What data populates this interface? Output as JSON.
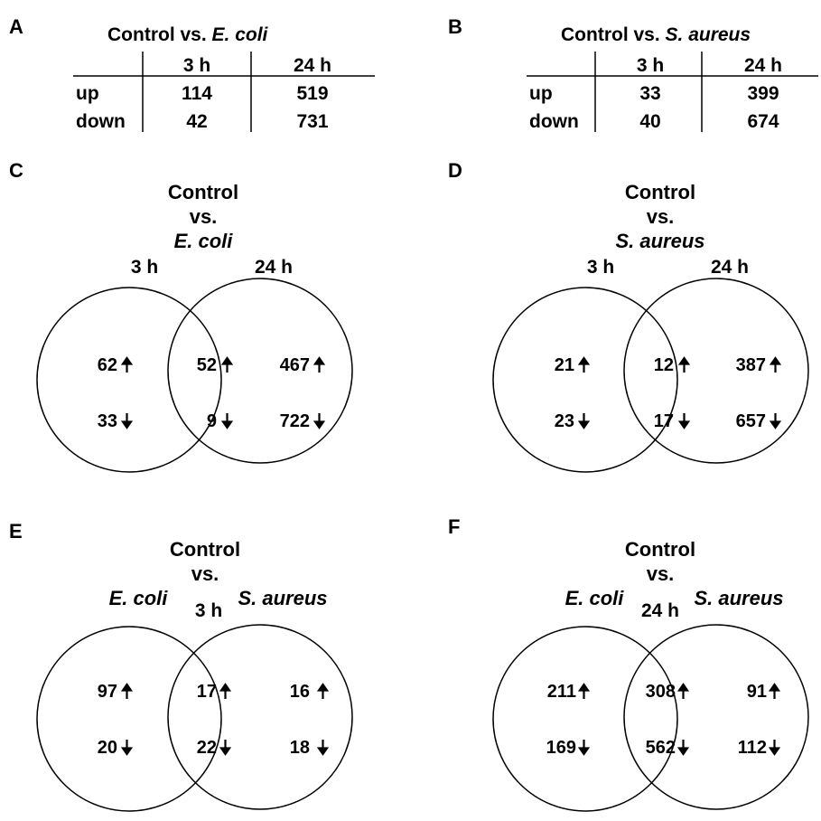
{
  "panels": {
    "A": {
      "letter": "A",
      "title_prefix": "Control vs. ",
      "title_species": "E. coli",
      "columns": [
        "3 h",
        "24 h"
      ],
      "rows": [
        {
          "label": "up",
          "values": [
            "114",
            "519"
          ]
        },
        {
          "label": "down",
          "values": [
            "42",
            "731"
          ]
        }
      ]
    },
    "B": {
      "letter": "B",
      "title_prefix": "Control vs. ",
      "title_species": "S. aureus",
      "columns": [
        "3 h",
        "24 h"
      ],
      "rows": [
        {
          "label": "up",
          "values": [
            "33",
            "399"
          ]
        },
        {
          "label": "down",
          "values": [
            "40",
            "674"
          ]
        }
      ]
    },
    "C": {
      "letter": "C",
      "title_lines": [
        "Control",
        "vs."
      ],
      "title_species": "E. coli",
      "left_label": "3 h",
      "right_label": "24 h",
      "left": {
        "up": "62",
        "down": "33"
      },
      "overlap": {
        "up": "52",
        "down": "9"
      },
      "right": {
        "up": "467",
        "down": "722"
      }
    },
    "D": {
      "letter": "D",
      "title_lines": [
        "Control",
        "vs."
      ],
      "title_species": "S. aureus",
      "left_label": "3 h",
      "right_label": "24 h",
      "left": {
        "up": "21",
        "down": "23"
      },
      "overlap": {
        "up": "12",
        "down": "17"
      },
      "right": {
        "up": "387",
        "down": "657"
      }
    },
    "E": {
      "letter": "E",
      "title_lines": [
        "Control",
        "vs."
      ],
      "left_label": "E. coli",
      "center_label": "3 h",
      "right_label": "S. aureus",
      "left": {
        "up": "97",
        "down": "20"
      },
      "overlap": {
        "up": "17",
        "down": "22"
      },
      "right": {
        "up": "16",
        "down": "18"
      }
    },
    "F": {
      "letter": "F",
      "title_lines": [
        "Control",
        "vs."
      ],
      "left_label": "E. coli",
      "center_label": "24 h",
      "right_label": "S. aureus",
      "left": {
        "up": "211",
        "down": "169"
      },
      "overlap": {
        "up": "308",
        "down": "562"
      },
      "right": {
        "up": "91",
        "down": "112"
      }
    }
  },
  "arrows": {
    "up": "up-arrow-icon",
    "down": "down-arrow-icon"
  },
  "colors": {
    "ink": "#000000",
    "background": "#ffffff"
  }
}
